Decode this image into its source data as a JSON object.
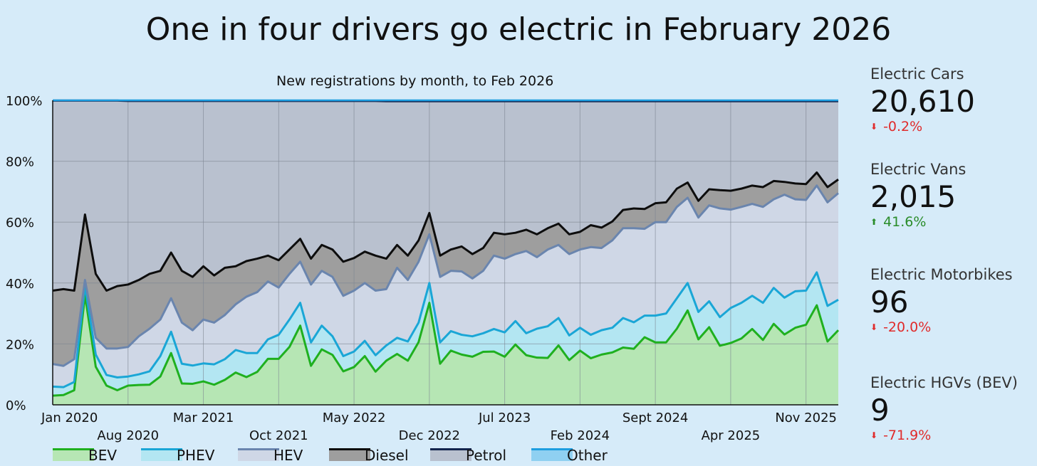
{
  "title": "One in four drivers go electric in February 2026",
  "chart_data": {
    "type": "area",
    "stacked": true,
    "percent": true,
    "subtitle": "New registrations by month, to  Feb 2026",
    "x_start": "Jan 2020",
    "x_end": "Feb 2026",
    "months": 74,
    "ylim": [
      0,
      100
    ],
    "y_ticks": [
      "0%",
      "20%",
      "40%",
      "60%",
      "80%",
      "100%"
    ],
    "x_tick_labels": [
      {
        "label": "Jan 2020",
        "month": 0,
        "row": 1
      },
      {
        "label": "Aug 2020",
        "month": 7,
        "row": 2
      },
      {
        "label": "Mar 2021",
        "month": 14,
        "row": 1
      },
      {
        "label": "Oct 2021",
        "month": 21,
        "row": 2
      },
      {
        "label": "May 2022",
        "month": 28,
        "row": 1
      },
      {
        "label": "Dec 2022",
        "month": 35,
        "row": 2
      },
      {
        "label": "Jul 2023",
        "month": 42,
        "row": 1
      },
      {
        "label": "Feb 2024",
        "month": 49,
        "row": 2
      },
      {
        "label": "Sept 2024",
        "month": 56,
        "row": 1
      },
      {
        "label": "Apr 2025",
        "month": 63,
        "row": 2
      },
      {
        "label": "Nov 2025",
        "month": 70,
        "row": 1
      }
    ],
    "series": [
      {
        "name": "BEV",
        "line": "#1fb01f",
        "fill": "#b6e6b4",
        "values": [
          3,
          3.2,
          4.8,
          36,
          12.5,
          6.3,
          4.8,
          6.3,
          6.5,
          6.6,
          9.3,
          17,
          7,
          6.9,
          7.7,
          6.6,
          8.2,
          10.6,
          9.1,
          10.8,
          15.1,
          15.1,
          19,
          26,
          12.8,
          18.2,
          16.4,
          11,
          12.4,
          16,
          10.9,
          14.5,
          16.7,
          14.5,
          20.6,
          33.5,
          13.5,
          17.8,
          16.5,
          15.8,
          17.4,
          17.5,
          15.8,
          19.8,
          16.3,
          15.5,
          15.4,
          19.5,
          14.7,
          17.8,
          15.3,
          16.5,
          17.2,
          18.8,
          18.4,
          22.2,
          20.5,
          20.5,
          25,
          31,
          21.5,
          25.5,
          19.4,
          20.3,
          21.8,
          24.9,
          21.3,
          26.6,
          23.1,
          25.3,
          26.3,
          32.7,
          20.8,
          24.5
        ]
      },
      {
        "name": "PHEV",
        "line": "#1aa6d6",
        "fill": "#b3e6f2",
        "values": [
          6,
          5.8,
          7.5,
          39,
          16.5,
          9.8,
          9,
          9.3,
          10,
          11,
          16,
          24,
          13.5,
          12.9,
          13.6,
          13.3,
          15,
          18,
          17,
          17,
          21.5,
          23,
          28,
          33.5,
          20.5,
          26,
          22.5,
          16,
          17.5,
          21,
          16.3,
          19.5,
          22,
          20.8,
          27,
          40,
          20.5,
          24.2,
          23,
          22.5,
          23.5,
          24.9,
          23.8,
          27.5,
          23.5,
          25,
          25.8,
          28.5,
          22.8,
          25.3,
          23,
          24.5,
          25.3,
          28.5,
          27.1,
          29.3,
          29.3,
          30,
          35,
          40,
          30.5,
          34,
          28.8,
          31.8,
          33.5,
          35.8,
          33.5,
          38.4,
          35.2,
          37.3,
          37.5,
          43.5,
          32.5,
          34.5
        ]
      },
      {
        "name": "HEV",
        "line": "#6a85ae",
        "fill": "#cfd7e6",
        "values": [
          13.4,
          12.8,
          15,
          41,
          22,
          18.5,
          18.5,
          19,
          22.5,
          25,
          28,
          35,
          27,
          24.5,
          28,
          27,
          29.5,
          33,
          35.5,
          37,
          40.5,
          38.5,
          43,
          47,
          39.5,
          44,
          42,
          35.8,
          37.5,
          40,
          37.5,
          38,
          45,
          41,
          47,
          56,
          42,
          44,
          43.8,
          41.5,
          44,
          49,
          48,
          49.5,
          50.5,
          48.5,
          51,
          52.5,
          49.5,
          51,
          51.8,
          51.5,
          54,
          58,
          58,
          57.8,
          60,
          60,
          65,
          68,
          61.5,
          65.5,
          64.5,
          64.1,
          65,
          66,
          65,
          67.5,
          69,
          67.5,
          67.3,
          72,
          66.5,
          69.5
        ]
      },
      {
        "name": "Diesel",
        "line": "#0d0d0d",
        "fill": "#9e9e9e",
        "values": [
          37.5,
          38,
          37.5,
          62.5,
          43,
          37.5,
          39,
          39.5,
          41,
          43,
          44,
          50,
          44,
          42,
          45.5,
          42.5,
          45,
          45.5,
          47.2,
          48,
          49,
          47.5,
          51,
          54.5,
          48,
          52.5,
          51,
          47,
          48.2,
          50.3,
          49,
          48,
          52.5,
          49,
          54,
          63,
          49,
          51,
          52,
          49.5,
          51.5,
          56.5,
          56,
          56.5,
          57.5,
          56,
          58,
          59.5,
          56,
          56.8,
          59,
          58.2,
          60.2,
          64,
          64.5,
          64.3,
          66.2,
          66.5,
          71,
          73,
          67,
          70.8,
          70.5,
          70.3,
          71,
          72,
          71.5,
          73.5,
          73.2,
          72.7,
          72.5,
          76.3,
          71.5,
          74
        ]
      },
      {
        "name": "Petrol",
        "line": "#12244d",
        "fill": "#b9c1cf",
        "values": [
          99.9,
          99.9,
          99.9,
          99.9,
          99.9,
          99.9,
          99.9,
          99.8,
          99.8,
          99.8,
          99.8,
          99.8,
          99.8,
          99.8,
          99.8,
          99.8,
          99.8,
          99.8,
          99.8,
          99.8,
          99.8,
          99.8,
          99.8,
          99.8,
          99.8,
          99.8,
          99.8,
          99.8,
          99.8,
          99.8,
          99.8,
          99.7,
          99.7,
          99.7,
          99.7,
          99.7,
          99.7,
          99.7,
          99.7,
          99.7,
          99.7,
          99.7,
          99.7,
          99.7,
          99.7,
          99.7,
          99.7,
          99.7,
          99.7,
          99.7,
          99.7,
          99.7,
          99.7,
          99.7,
          99.7,
          99.7,
          99.7,
          99.7,
          99.7,
          99.7,
          99.7,
          99.7,
          99.7,
          99.7,
          99.7,
          99.7,
          99.7,
          99.7,
          99.7,
          99.7,
          99.7,
          99.7,
          99.7,
          99.7
        ]
      },
      {
        "name": "Other",
        "line": "#1e9ee0",
        "fill": "#8fd0f1",
        "values": [
          100,
          100,
          100,
          100,
          100,
          100,
          100,
          100,
          100,
          100,
          100,
          100,
          100,
          100,
          100,
          100,
          100,
          100,
          100,
          100,
          100,
          100,
          100,
          100,
          100,
          100,
          100,
          100,
          100,
          100,
          100,
          100,
          100,
          100,
          100,
          100,
          100,
          100,
          100,
          100,
          100,
          100,
          100,
          100,
          100,
          100,
          100,
          100,
          100,
          100,
          100,
          100,
          100,
          100,
          100,
          100,
          100,
          100,
          100,
          100,
          100,
          100,
          100,
          100,
          100,
          100,
          100,
          100,
          100,
          100,
          100,
          100,
          100,
          100
        ]
      }
    ]
  },
  "stats": [
    {
      "label": "Electric Cars",
      "value": "20,610",
      "change": "-0.2%",
      "direction": "down",
      "color": "#e02b2b"
    },
    {
      "label": "Electric Vans",
      "value": "2,015",
      "change": "41.6%",
      "direction": "up",
      "color": "#2a8c2a"
    },
    {
      "label": "Electric Motorbikes",
      "value": "96",
      "change": "-20.0%",
      "direction": "down",
      "color": "#e02b2b"
    },
    {
      "label": "Electric HGVs (BEV)",
      "value": "9",
      "change": "-71.9%",
      "direction": "down",
      "color": "#e02b2b"
    }
  ],
  "legend": [
    {
      "label": "BEV",
      "line": "#1fb01f",
      "fill": "#b6e6b4"
    },
    {
      "label": "PHEV",
      "line": "#1aa6d6",
      "fill": "#b3e6f2"
    },
    {
      "label": "HEV",
      "line": "#6a85ae",
      "fill": "#cfd7e6"
    },
    {
      "label": "Diesel",
      "line": "#0d0d0d",
      "fill": "#9e9e9e"
    },
    {
      "label": "Petrol",
      "line": "#12244d",
      "fill": "#b9c1cf"
    },
    {
      "label": "Other",
      "line": "#1e9ee0",
      "fill": "#8fd0f1"
    }
  ]
}
